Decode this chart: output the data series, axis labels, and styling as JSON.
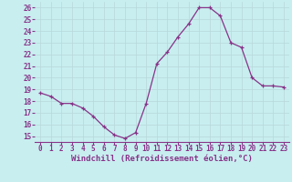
{
  "x": [
    0,
    1,
    2,
    3,
    4,
    5,
    6,
    7,
    8,
    9,
    10,
    11,
    12,
    13,
    14,
    15,
    16,
    17,
    18,
    19,
    20,
    21,
    22,
    23
  ],
  "y": [
    18.7,
    18.4,
    17.8,
    17.8,
    17.4,
    16.7,
    15.8,
    15.1,
    14.8,
    15.3,
    17.8,
    21.2,
    22.2,
    23.5,
    24.6,
    26.0,
    26.0,
    25.3,
    23.0,
    22.6,
    20.0,
    19.3,
    19.3,
    19.2
  ],
  "line_color": "#883388",
  "marker": "+",
  "bg_color": "#c8eef0",
  "grid_color": "#b8d8da",
  "xlabel": "Windchill (Refroidissement éolien,°C)",
  "xlabel_color": "#883388",
  "ylim": [
    14.5,
    26.5
  ],
  "yticks": [
    15,
    16,
    17,
    18,
    19,
    20,
    21,
    22,
    23,
    24,
    25,
    26
  ],
  "xticks": [
    0,
    1,
    2,
    3,
    4,
    5,
    6,
    7,
    8,
    9,
    10,
    11,
    12,
    13,
    14,
    15,
    16,
    17,
    18,
    19,
    20,
    21,
    22,
    23
  ],
  "tick_color": "#883388",
  "font_family": "monospace",
  "xlabel_fontsize": 6.5,
  "tick_fontsize": 5.5,
  "linewidth": 0.9,
  "markersize": 3.0
}
